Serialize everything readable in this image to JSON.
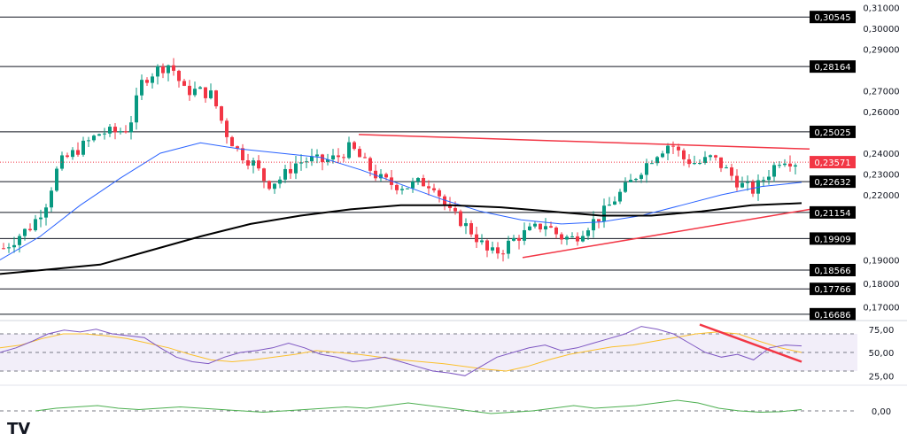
{
  "chart_data": [
    {
      "type": "candlestick",
      "axis": "right",
      "ylim": [
        0.166,
        0.31
      ],
      "ticks": [
        "0,31000",
        "0,30000",
        "0,29000",
        "0,27000",
        "0,26000",
        "0,24000",
        "0,23000",
        "0,22000",
        "0,19000",
        "0,18000",
        "0,17000"
      ],
      "levels": [
        {
          "value": 0.30545,
          "label": "0,30545"
        },
        {
          "value": 0.28164,
          "label": "0,28164"
        },
        {
          "value": 0.25025,
          "label": "0,25025"
        },
        {
          "value": 0.22632,
          "label": "0,22632"
        },
        {
          "value": 0.21154,
          "label": "0,21154"
        },
        {
          "value": 0.19909,
          "label": "0,19909"
        },
        {
          "value": 0.18566,
          "label": "0,18566"
        },
        {
          "value": 0.17766,
          "label": "0,17766"
        },
        {
          "value": 0.16686,
          "label": "0,16686"
        }
      ],
      "current_price": {
        "value": 0.23571,
        "label": "0,23571",
        "color": "#f23645"
      },
      "close": [
        0.195,
        0.2,
        0.205,
        0.215,
        0.235,
        0.24,
        0.245,
        0.25,
        0.25,
        0.252,
        0.275,
        0.28,
        0.283,
        0.27,
        0.27,
        0.268,
        0.25,
        0.24,
        0.235,
        0.225,
        0.228,
        0.235,
        0.237,
        0.236,
        0.238,
        0.243,
        0.235,
        0.228,
        0.225,
        0.224,
        0.226,
        0.225,
        0.212,
        0.207,
        0.2,
        0.192,
        0.195,
        0.2,
        0.203,
        0.206,
        0.2,
        0.199,
        0.205,
        0.21,
        0.218,
        0.225,
        0.233,
        0.24,
        0.245,
        0.237,
        0.235,
        0.238,
        0.232,
        0.225,
        0.222,
        0.23,
        0.238,
        0.2357
      ],
      "ma50": [
        0.19,
        0.2,
        0.215,
        0.228,
        0.24,
        0.245,
        0.242,
        0.24,
        0.238,
        0.232,
        0.225,
        0.218,
        0.212,
        0.208,
        0.206,
        0.207,
        0.21,
        0.215,
        0.22,
        0.224,
        0.226
      ],
      "ma200": [
        0.184,
        0.186,
        0.188,
        0.194,
        0.2,
        0.206,
        0.21,
        0.213,
        0.215,
        0.215,
        0.214,
        0.212,
        0.21,
        0.21,
        0.212,
        0.215,
        0.216
      ],
      "resistance_line": [
        0.249,
        0.242
      ],
      "support_trendline": [
        0.191,
        0.213
      ],
      "line_color": "#f23645"
    },
    {
      "type": "line",
      "ticks": [
        "75,00",
        "50,00",
        "25,00"
      ],
      "ylim": [
        15,
        85
      ],
      "band": [
        30,
        70
      ],
      "rsi": [
        50,
        55,
        62,
        70,
        74,
        72,
        75,
        70,
        68,
        66,
        55,
        45,
        40,
        38,
        45,
        50,
        52,
        55,
        60,
        55,
        48,
        45,
        40,
        42,
        45,
        40,
        35,
        30,
        28,
        25,
        35,
        45,
        50,
        55,
        58,
        52,
        55,
        60,
        65,
        70,
        78,
        75,
        70,
        60,
        50,
        45,
        48,
        42,
        55,
        58,
        57
      ],
      "rsi_ma": [
        55,
        58,
        65,
        70,
        70,
        68,
        65,
        60,
        55,
        48,
        42,
        40,
        42,
        45,
        48,
        52,
        50,
        48,
        45,
        42,
        40,
        38,
        35,
        32,
        30,
        35,
        42,
        48,
        52,
        56,
        58,
        62,
        66,
        70,
        72,
        70,
        62,
        55,
        50
      ],
      "divergence_line": [
        80,
        40
      ]
    },
    {
      "type": "line",
      "ticks": [
        "0,00"
      ],
      "ylim": [
        -1,
        1
      ],
      "values": [
        0,
        0.1,
        0.15,
        0.2,
        0.1,
        0.05,
        0.1,
        0.15,
        0.1,
        0.05,
        0,
        -0.05,
        0,
        0.05,
        0.1,
        0.15,
        0.1,
        0.2,
        0.3,
        0.2,
        0.1,
        0,
        -0.1,
        -0.05,
        0,
        0.1,
        0.2,
        0.1,
        0.15,
        0.2,
        0.3,
        0.4,
        0.3,
        0.1,
        0,
        -0.05,
        -0.03,
        0.05
      ]
    }
  ],
  "logo": "TV"
}
